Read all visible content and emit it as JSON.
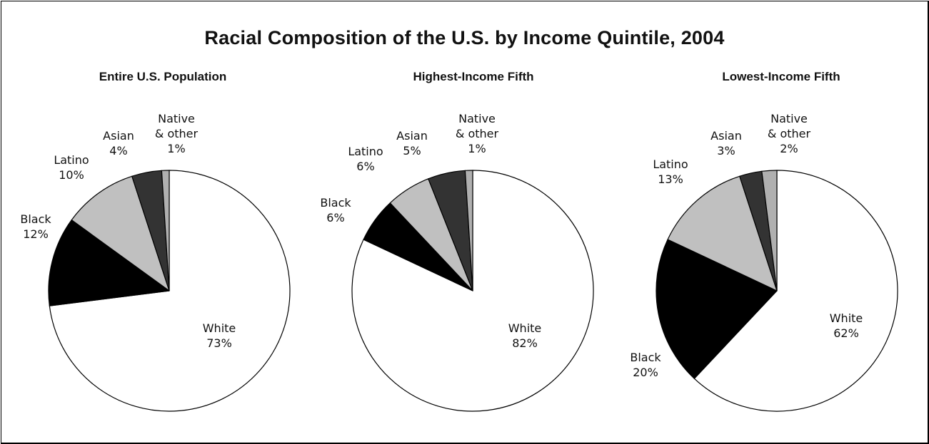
{
  "chart_data": [
    {
      "type": "pie",
      "title": "Entire U.S. Population",
      "slices": [
        {
          "name": "White",
          "value": 73,
          "label": "73%",
          "color": "#ffffff"
        },
        {
          "name": "Black",
          "value": 12,
          "label": "12%",
          "color": "#000000"
        },
        {
          "name": "Latino",
          "value": 10,
          "label": "10%",
          "color": "#c0c0c0"
        },
        {
          "name": "Asian",
          "value": 4,
          "label": "4%",
          "color": "#333333"
        },
        {
          "name": "Native & other",
          "value": 1,
          "label": "1%",
          "color": "#b0b0b0"
        }
      ]
    },
    {
      "type": "pie",
      "title": "Highest-Income Fifth",
      "slices": [
        {
          "name": "White",
          "value": 82,
          "label": "82%",
          "color": "#ffffff"
        },
        {
          "name": "Black",
          "value": 6,
          "label": "6%",
          "color": "#000000"
        },
        {
          "name": "Latino",
          "value": 6,
          "label": "6%",
          "color": "#c0c0c0"
        },
        {
          "name": "Asian",
          "value": 5,
          "label": "5%",
          "color": "#333333"
        },
        {
          "name": "Native & other",
          "value": 1,
          "label": "1%",
          "color": "#b0b0b0"
        }
      ]
    },
    {
      "type": "pie",
      "title": "Lowest-Income Fifth",
      "slices": [
        {
          "name": "White",
          "value": 62,
          "label": "62%",
          "color": "#ffffff"
        },
        {
          "name": "Black",
          "value": 20,
          "label": "20%",
          "color": "#000000"
        },
        {
          "name": "Latino",
          "value": 13,
          "label": "13%",
          "color": "#c0c0c0"
        },
        {
          "name": "Asian",
          "value": 3,
          "label": "3%",
          "color": "#333333"
        },
        {
          "name": "Native & other",
          "value": 2,
          "label": "2%",
          "color": "#b0b0b0"
        }
      ]
    }
  ],
  "figure": {
    "title": "Racial Composition of the U.S. by Income Quintile, 2004"
  }
}
